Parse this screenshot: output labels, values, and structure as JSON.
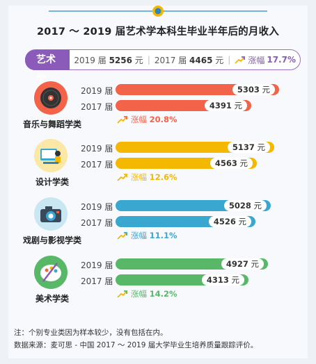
{
  "title": "2017 ～ 2019 届艺术学本科生毕业半年后的月收入",
  "summary": {
    "tag": "艺术学",
    "y2019_label": "2019 届",
    "y2019_value": "5256",
    "y2017_label": "2017 届",
    "y2017_value": "4465",
    "unit": "元",
    "growth_label": "涨幅",
    "growth_value": "17.7%"
  },
  "colors": {
    "purple": "#8a5bb8",
    "music": "#f2634a",
    "design": "#f5b800",
    "drama": "#3aa7d0",
    "fineart": "#58b868"
  },
  "chart_data": {
    "type": "bar",
    "orientation": "horizontal",
    "title": "2017 ～ 2019 届艺术学本科生毕业半年后的月收入",
    "unit": "元",
    "series_labels": [
      "2019 届",
      "2017 届"
    ],
    "growth_label": "涨幅",
    "categories": [
      {
        "key": "music",
        "name": "音乐与舞蹈学类",
        "icon": "vinyl-record-icon",
        "y2019": 5303,
        "y2017": 4391,
        "growth": "20.8%"
      },
      {
        "key": "design",
        "name": "设计学类",
        "icon": "designer-monitor-icon",
        "y2019": 5137,
        "y2017": 4563,
        "growth": "12.6%"
      },
      {
        "key": "drama",
        "name": "戏剧与影视学类",
        "icon": "camera-icon",
        "y2019": 5028,
        "y2017": 4526,
        "growth": "11.1%"
      },
      {
        "key": "fineart",
        "name": "美术学类",
        "icon": "palette-icon",
        "y2019": 4927,
        "y2017": 4313,
        "growth": "14.2%"
      }
    ]
  },
  "notes": {
    "note": "注：个别专业类因为样本较少，没有包括在内。",
    "source": "数据来源：麦可思 - 中国 2017 ～ 2019 届大学毕业生培养质量跟踪评价。"
  }
}
